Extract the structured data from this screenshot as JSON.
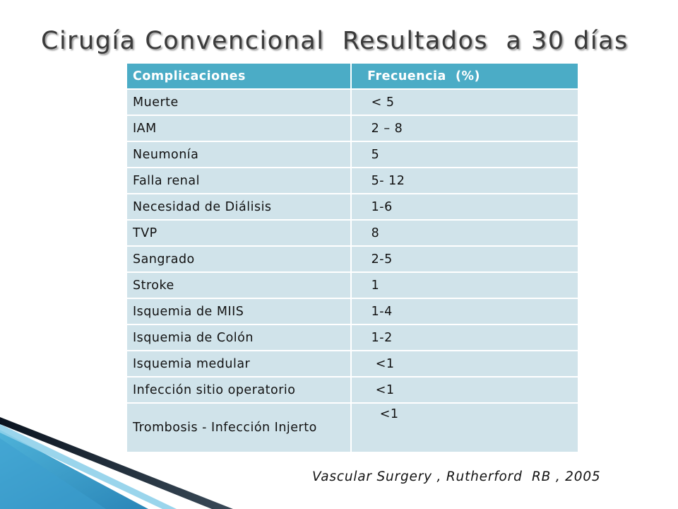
{
  "slide": {
    "title": "Cirugía Convencional  Resultados  a 30 días",
    "citation": "Vascular Surgery , Rutherford  RB , 2005",
    "colors": {
      "header_bg": "#4bacc6",
      "row_bg": "#d0e3ea",
      "accent_dark": "#1f3d55"
    }
  },
  "table": {
    "headers": [
      "Complicaciones",
      " Frecuencia  (%)"
    ],
    "rows": [
      [
        "Muerte",
        "  < 5"
      ],
      [
        "IAM",
        "  2 – 8"
      ],
      [
        "Neumonía",
        "  5"
      ],
      [
        "Falla renal",
        "  5- 12"
      ],
      [
        "Necesidad de Diálisis",
        "  1-6"
      ],
      [
        "TVP",
        "  8"
      ],
      [
        "Sangrado",
        "  2-5"
      ],
      [
        "Stroke",
        "  1"
      ],
      [
        "Isquemia de MIIS",
        "  1-4"
      ],
      [
        "Isquemia de Colón",
        "  1-2"
      ],
      [
        "Isquemia medular",
        "   <1"
      ],
      [
        "Infección sitio operatorio",
        "   <1"
      ],
      [
        "Trombosis  - Infección Injerto",
        "    <1"
      ]
    ]
  }
}
